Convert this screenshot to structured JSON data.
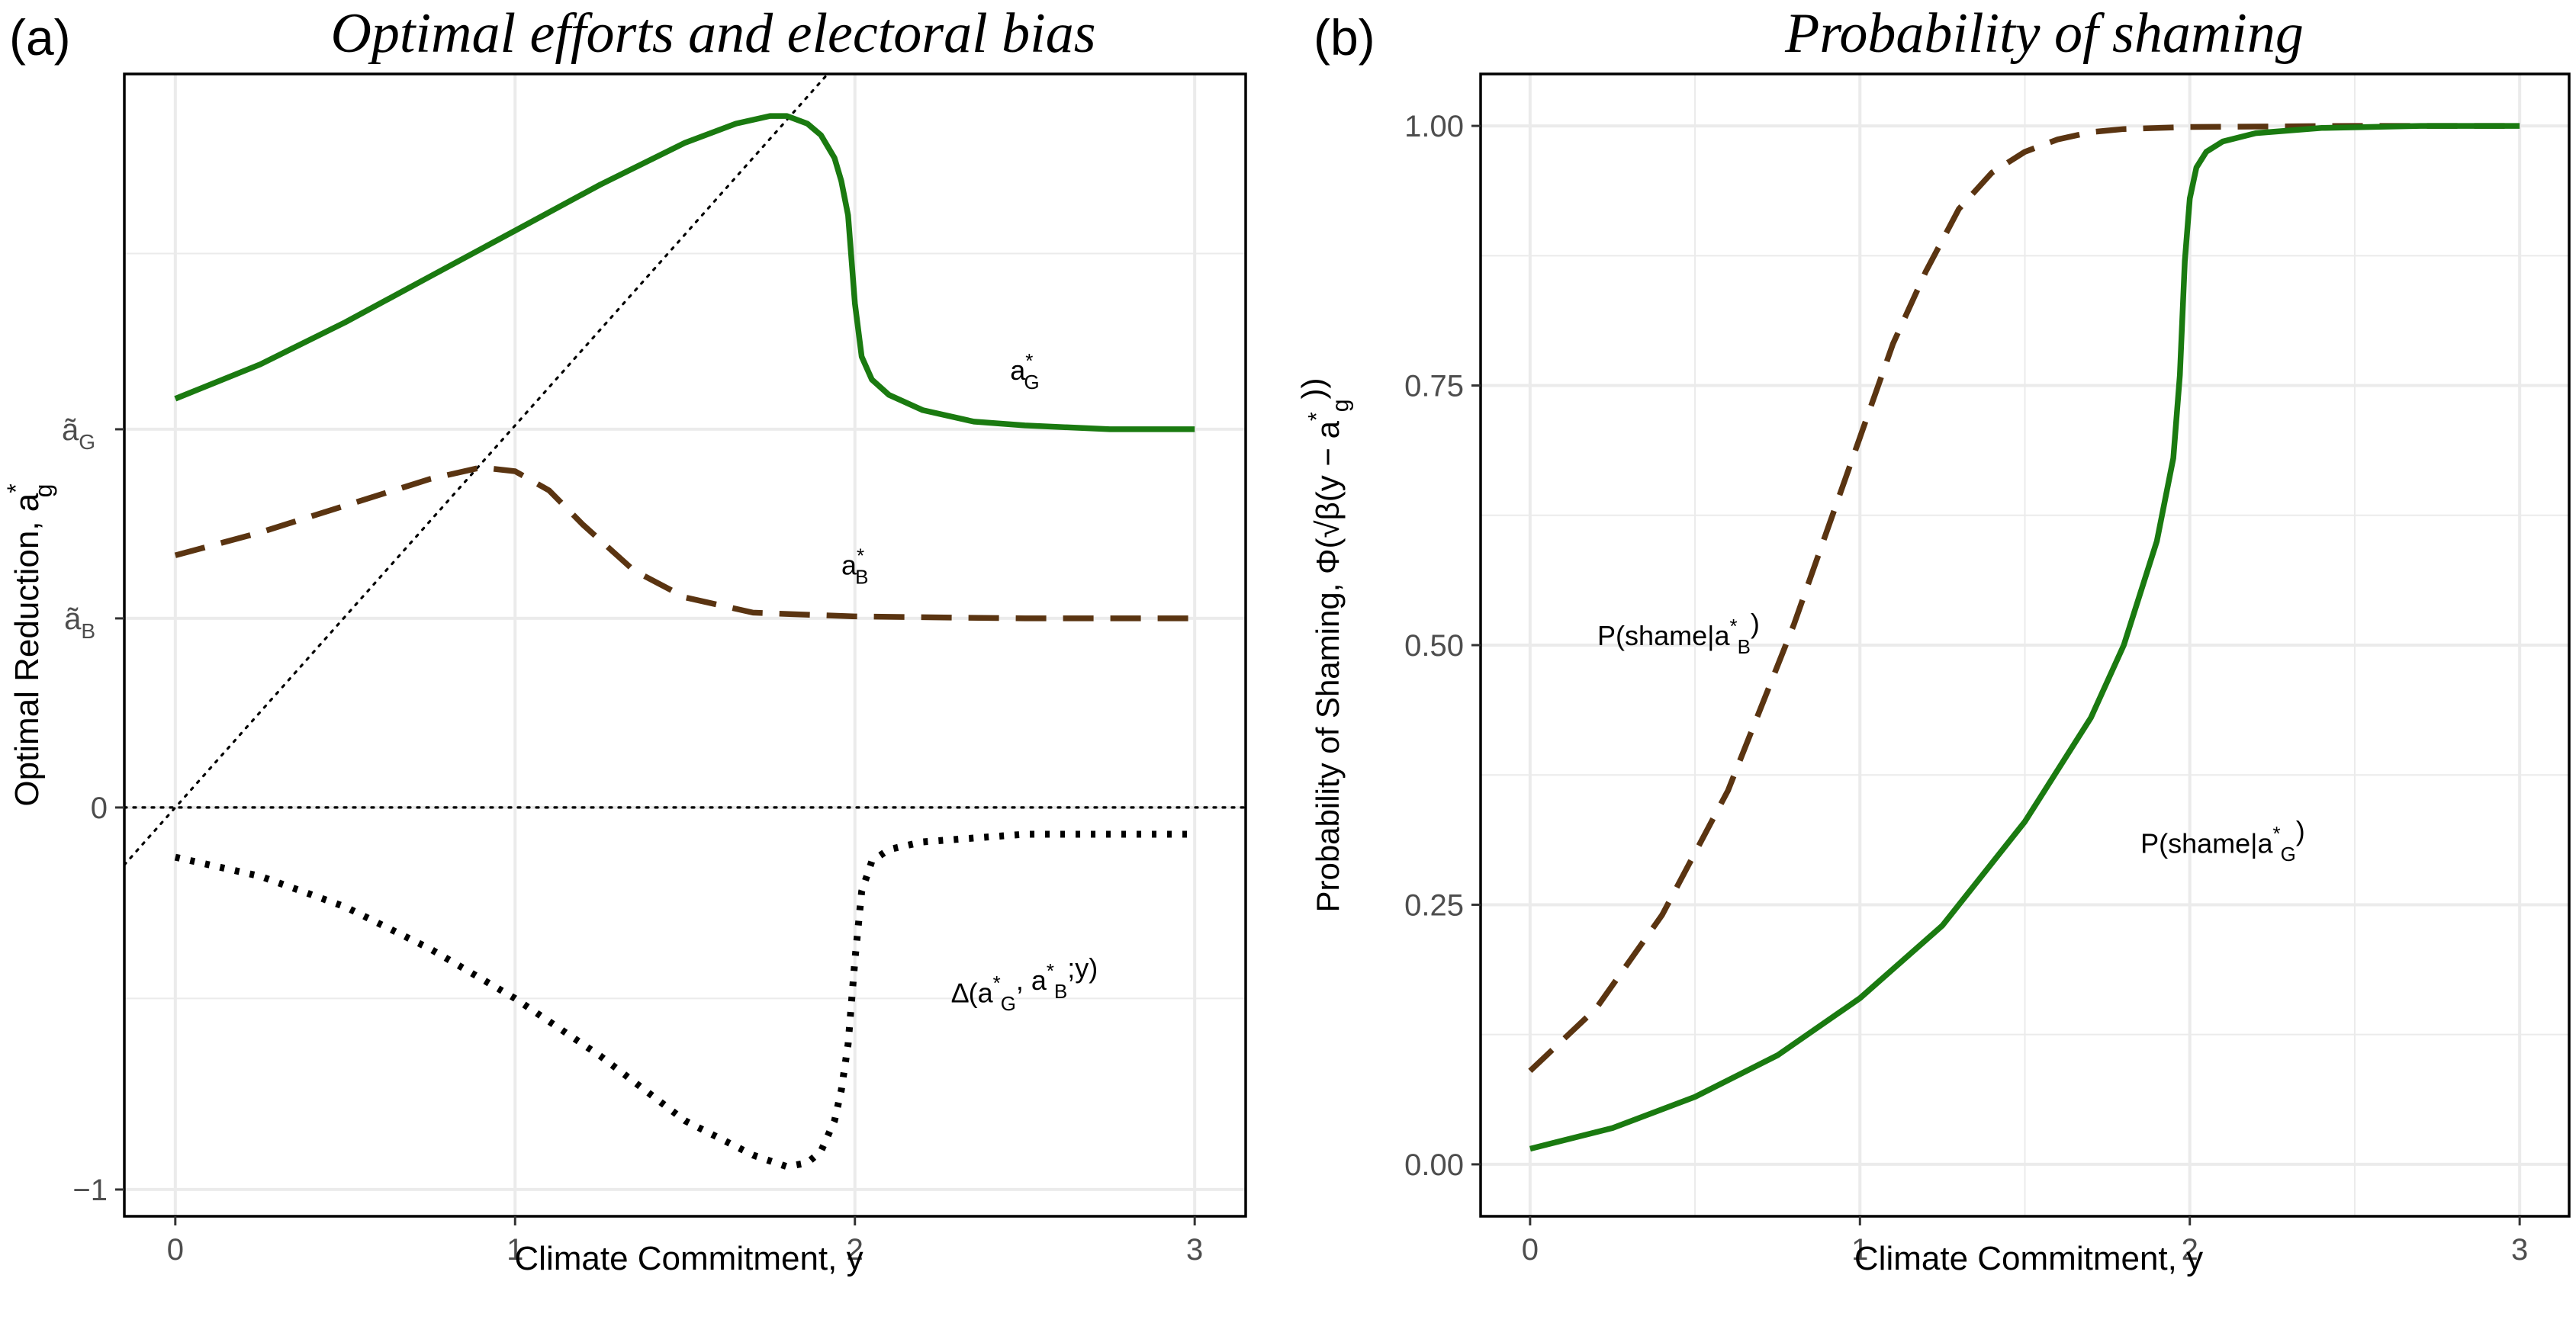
{
  "figure": {
    "panel_a_label": "(a)",
    "panel_b_label": "(b)"
  },
  "colors": {
    "green": "#1a7a10",
    "brown": "#5a3411",
    "black": "#000000",
    "grid": "#ebebeb"
  },
  "chart_data": [
    {
      "type": "line",
      "title": "Optimal efforts and electoral bias",
      "xlabel": "Climate Commitment, y",
      "ylabel": "Optimal Reduction, a",
      "ylabel_sup": "*",
      "ylabel_sub": "g",
      "xlim": [
        -0.15,
        3.15
      ],
      "ylim": [
        -1.07,
        1.92
      ],
      "x_ticks": [
        0,
        1,
        2,
        3
      ],
      "x_tick_labels": [
        "0",
        "1",
        "2",
        "3"
      ],
      "y_ticks": [
        -1,
        0,
        0.495,
        0.99
      ],
      "y_tick_labels": [
        "−1",
        "0",
        "ã",
        "ã"
      ],
      "y_tick_subs": [
        "",
        "",
        "B",
        "G"
      ],
      "y_minor_grid": [
        -0.5,
        1.45
      ],
      "reference_lines": [
        {
          "name": "zero-line",
          "style": "dotted",
          "x": [
            -0.15,
            3.15
          ],
          "y": [
            0,
            0
          ]
        },
        {
          "name": "diagonal-line",
          "style": "dotted",
          "x": [
            -0.15,
            1.93
          ],
          "y": [
            -0.15,
            1.93
          ]
        }
      ],
      "series": [
        {
          "name": "a_G*",
          "color": "green",
          "style": "solid",
          "x": [
            0,
            0.25,
            0.5,
            0.75,
            1.0,
            1.25,
            1.5,
            1.65,
            1.75,
            1.8,
            1.86,
            1.9,
            1.94,
            1.96,
            1.98,
            2.0,
            2.02,
            2.05,
            2.1,
            2.2,
            2.35,
            2.5,
            2.75,
            3.0
          ],
          "y": [
            1.07,
            1.16,
            1.27,
            1.39,
            1.51,
            1.63,
            1.74,
            1.79,
            1.81,
            1.81,
            1.79,
            1.76,
            1.7,
            1.64,
            1.55,
            1.32,
            1.18,
            1.12,
            1.08,
            1.04,
            1.01,
            1.0,
            0.99,
            0.99
          ]
        },
        {
          "name": "a_B*",
          "color": "brown",
          "style": "dashed",
          "x": [
            0,
            0.25,
            0.5,
            0.75,
            0.9,
            1.0,
            1.1,
            1.2,
            1.35,
            1.5,
            1.7,
            2.0,
            2.5,
            3.0
          ],
          "y": [
            0.66,
            0.72,
            0.79,
            0.86,
            0.89,
            0.88,
            0.83,
            0.74,
            0.62,
            0.55,
            0.51,
            0.5,
            0.495,
            0.495
          ]
        },
        {
          "name": "Delta",
          "color": "black",
          "style": "dotted",
          "x": [
            0,
            0.25,
            0.5,
            0.75,
            1.0,
            1.25,
            1.5,
            1.7,
            1.8,
            1.86,
            1.9,
            1.94,
            1.96,
            1.98,
            2.0,
            2.02,
            2.05,
            2.1,
            2.2,
            2.35,
            2.5,
            2.75,
            3.0
          ],
          "y": [
            -0.13,
            -0.18,
            -0.26,
            -0.37,
            -0.5,
            -0.65,
            -0.82,
            -0.91,
            -0.94,
            -0.93,
            -0.9,
            -0.82,
            -0.74,
            -0.62,
            -0.4,
            -0.22,
            -0.14,
            -0.11,
            -0.09,
            -0.08,
            -0.07,
            -0.07,
            -0.07
          ]
        }
      ],
      "annotations": [
        {
          "name": "label-aG",
          "x": 2.5,
          "y": 1.12,
          "base": "a",
          "sup": "*",
          "sub": "G"
        },
        {
          "name": "label-aB",
          "x": 2.0,
          "y": 0.61,
          "base": "a",
          "sup": "*",
          "sub": "B"
        },
        {
          "name": "label-delta",
          "x": 2.5,
          "y": -0.51,
          "parts": [
            {
              "t": "∆(a"
            },
            {
              "t": "*",
              "sup": true
            },
            {
              "t": "G",
              "sub": true
            },
            {
              "t": ", a"
            },
            {
              "t": "*",
              "sup": true
            },
            {
              "t": "B",
              "sub": true
            },
            {
              "t": ";y)"
            }
          ]
        }
      ]
    },
    {
      "type": "line",
      "title": "Probability of shaming",
      "xlabel": "Climate Commitment, y",
      "ylabel_parts": [
        {
          "t": "Probability of Shaming, Φ(√β(y − a"
        },
        {
          "t": "*",
          "sup": true
        },
        {
          "t": "g",
          "sub": true
        },
        {
          "t": "))"
        }
      ],
      "xlim": [
        -0.15,
        3.15
      ],
      "ylim": [
        -0.05,
        1.05
      ],
      "x_ticks": [
        0,
        1,
        2,
        3
      ],
      "x_tick_labels": [
        "0",
        "1",
        "2",
        "3"
      ],
      "y_ticks": [
        0,
        0.25,
        0.5,
        0.75,
        1.0
      ],
      "y_tick_labels": [
        "0.00",
        "0.25",
        "0.50",
        "0.75",
        "1.00"
      ],
      "x_minor_grid": [
        0.5,
        1.5,
        2.5
      ],
      "y_minor_grid": [
        0.125,
        0.375,
        0.625,
        0.875
      ],
      "series": [
        {
          "name": "P(shame|a_B*)",
          "color": "brown",
          "style": "dashed",
          "x": [
            0,
            0.2,
            0.4,
            0.6,
            0.8,
            0.9,
            1.0,
            1.1,
            1.2,
            1.3,
            1.4,
            1.5,
            1.6,
            1.7,
            1.8,
            2.0,
            2.5,
            3.0
          ],
          "y": [
            0.09,
            0.15,
            0.24,
            0.36,
            0.52,
            0.61,
            0.7,
            0.79,
            0.86,
            0.92,
            0.955,
            0.975,
            0.987,
            0.994,
            0.997,
            0.999,
            1.0,
            1.0
          ]
        },
        {
          "name": "P(shame|a_G*)",
          "color": "green",
          "style": "solid",
          "x": [
            0,
            0.25,
            0.5,
            0.75,
            1.0,
            1.25,
            1.5,
            1.7,
            1.8,
            1.9,
            1.95,
            1.97,
            1.985,
            2.0,
            2.02,
            2.05,
            2.1,
            2.2,
            2.4,
            2.7,
            3.0
          ],
          "y": [
            0.015,
            0.035,
            0.065,
            0.105,
            0.16,
            0.23,
            0.33,
            0.43,
            0.5,
            0.6,
            0.68,
            0.76,
            0.87,
            0.93,
            0.96,
            0.975,
            0.985,
            0.993,
            0.998,
            1.0,
            1.0
          ]
        }
      ],
      "annotations": [
        {
          "name": "label-p-shame-b",
          "x": 0.45,
          "y": 0.5,
          "parts": [
            {
              "t": "P(shame|a"
            },
            {
              "t": "*",
              "sup": true
            },
            {
              "t": "B",
              "sub": true
            },
            {
              "t": ")"
            }
          ]
        },
        {
          "name": "label-p-shame-g",
          "x": 2.1,
          "y": 0.3,
          "parts": [
            {
              "t": "P(shame|a"
            },
            {
              "t": "*",
              "sup": true
            },
            {
              "t": "G",
              "sub": true
            },
            {
              "t": ")"
            }
          ]
        }
      ]
    }
  ]
}
